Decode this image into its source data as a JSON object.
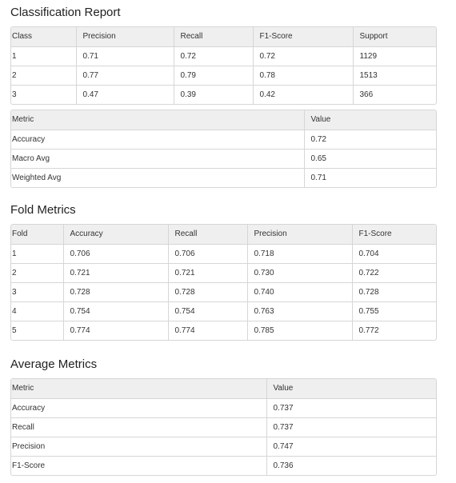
{
  "classification": {
    "title": "Classification Report",
    "headers": [
      "Class",
      "Precision",
      "Recall",
      "F1-Score",
      "Support"
    ],
    "rows": [
      [
        "1",
        "0.71",
        "0.72",
        "0.72",
        "1129"
      ],
      [
        "2",
        "0.77",
        "0.79",
        "0.78",
        "1513"
      ],
      [
        "3",
        "0.47",
        "0.39",
        "0.42",
        "366"
      ]
    ]
  },
  "summary": {
    "headers": [
      "Metric",
      "Value"
    ],
    "rows": [
      [
        "Accuracy",
        "0.72"
      ],
      [
        "Macro Avg",
        "0.65"
      ],
      [
        "Weighted Avg",
        "0.71"
      ]
    ]
  },
  "fold": {
    "title": "Fold Metrics",
    "headers": [
      "Fold",
      "Accuracy",
      "Recall",
      "Precision",
      "F1-Score"
    ],
    "rows": [
      [
        "1",
        "0.706",
        "0.706",
        "0.718",
        "0.704"
      ],
      [
        "2",
        "0.721",
        "0.721",
        "0.730",
        "0.722"
      ],
      [
        "3",
        "0.728",
        "0.728",
        "0.740",
        "0.728"
      ],
      [
        "4",
        "0.754",
        "0.754",
        "0.763",
        "0.755"
      ],
      [
        "5",
        "0.774",
        "0.774",
        "0.785",
        "0.772"
      ]
    ]
  },
  "average": {
    "title": "Average Metrics",
    "headers": [
      "Metric",
      "Value"
    ],
    "rows": [
      [
        "Accuracy",
        "0.737"
      ],
      [
        "Recall",
        "0.737"
      ],
      [
        "Precision",
        "0.747"
      ],
      [
        "F1-Score",
        "0.736"
      ]
    ]
  }
}
